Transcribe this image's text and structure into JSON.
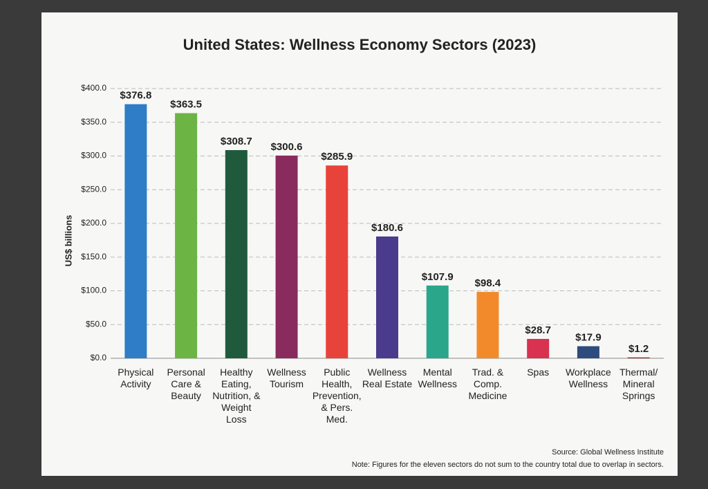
{
  "chart_data": {
    "type": "bar",
    "title": "United States: Wellness Economy Sectors (2023)",
    "y_label": "US$ billions",
    "categories": [
      "Physical Activity",
      "Personal Care & Beauty",
      "Healthy Eating, Nutrition, & Weight Loss",
      "Wellness Tourism",
      "Public Health, Prevention, & Pers. Med.",
      "Wellness Real Estate",
      "Mental Wellness",
      "Trad. & Comp. Medicine",
      "Spas",
      "Workplace Wellness",
      "Thermal/ Mineral Springs"
    ],
    "values": [
      376.8,
      363.5,
      308.7,
      300.6,
      285.9,
      180.6,
      107.9,
      98.4,
      28.7,
      17.9,
      1.2
    ],
    "value_labels": [
      "$376.8",
      "$363.5",
      "$308.7",
      "$300.6",
      "$285.9",
      "$180.6",
      "$107.9",
      "$98.4",
      "$28.7",
      "$17.9",
      "$1.2"
    ],
    "colors": [
      "#2f7dc6",
      "#6cb443",
      "#1f5a3d",
      "#8a2b5e",
      "#e8433a",
      "#4a3b8c",
      "#2aa68a",
      "#f28a2b",
      "#d93150",
      "#2d4b7d",
      "#8b1c1c"
    ],
    "ylim": [
      0,
      400
    ],
    "yticks": [
      {
        "value": 0,
        "label": "$0.0"
      },
      {
        "value": 50,
        "label": "$50.0"
      },
      {
        "value": 100,
        "label": "$100.0"
      },
      {
        "value": 150,
        "label": "$150.0"
      },
      {
        "value": 200,
        "label": "$200.0"
      },
      {
        "value": 250,
        "label": "$250.0"
      },
      {
        "value": 300,
        "label": "$300.0"
      },
      {
        "value": 350,
        "label": "$350.0"
      },
      {
        "value": 400,
        "label": "$400.0"
      }
    ],
    "grid": true,
    "source": "Source: Global Wellness Institute",
    "note": "Note: Figures for the eleven sectors do not sum to the country total due to overlap in sectors."
  }
}
